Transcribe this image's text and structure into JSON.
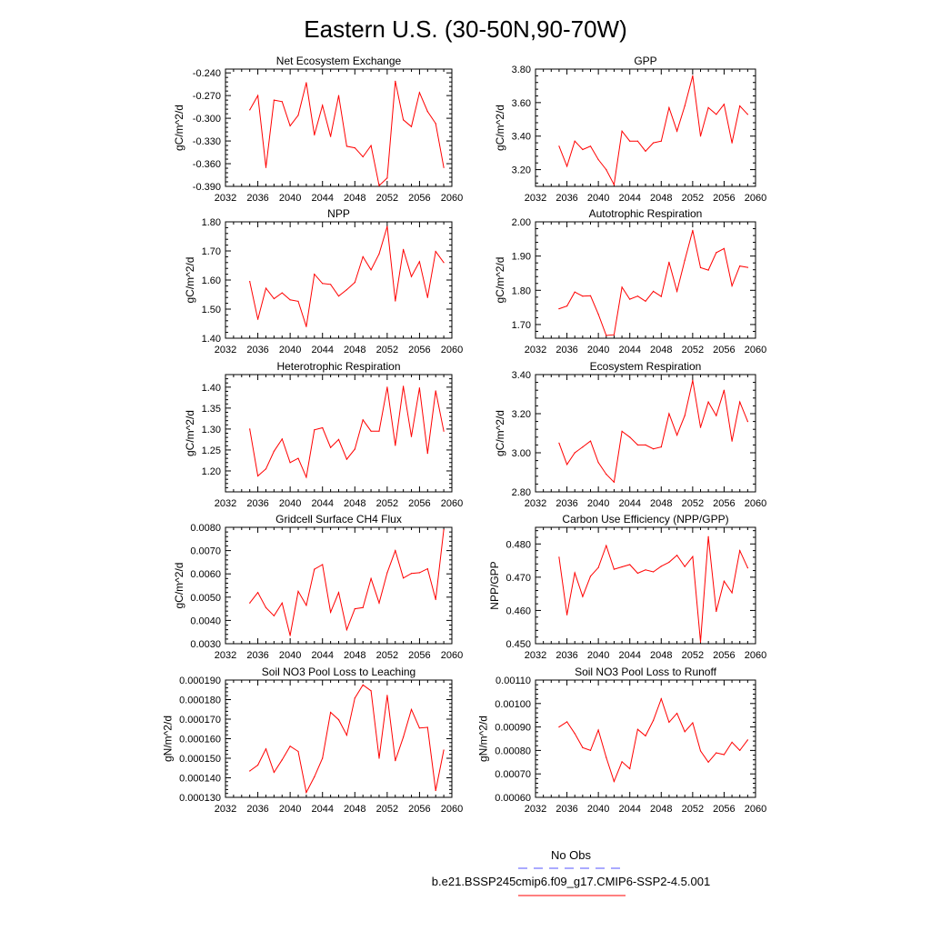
{
  "page": {
    "title": "Eastern U.S. (30-50N,90-70W)",
    "legend": [
      {
        "label": "No Obs",
        "color": "#5555ff",
        "dash": true
      },
      {
        "label": "b.e21.BSSP245cmip6.f09_g17.CMIP6-SSP2-4.5.001",
        "color": "#ff0000",
        "dash": false
      }
    ]
  },
  "chart_data": [
    {
      "type": "line",
      "title": "Net Ecosystem Exchange",
      "ylabel": "gC/m^2/d",
      "xlim": [
        2032,
        2060
      ],
      "ylim": [
        -0.39,
        -0.235
      ],
      "yticks": [
        "-0.240",
        "-0.270",
        "-0.300",
        "-0.330",
        "-0.360",
        "-0.390"
      ],
      "xticks": [
        "2032",
        "2036",
        "2040",
        "2044",
        "2048",
        "2052",
        "2056",
        "2060"
      ],
      "series": [
        {
          "color": "#ff0000",
          "x": [
            2035,
            2036,
            2037,
            2038,
            2039,
            2040,
            2041,
            2042,
            2043,
            2044,
            2045,
            2046,
            2047,
            2048,
            2049,
            2050,
            2051,
            2052,
            2053,
            2054,
            2055,
            2056,
            2057,
            2058,
            2059
          ],
          "y": [
            -0.289,
            -0.27,
            -0.365,
            -0.276,
            -0.278,
            -0.31,
            -0.296,
            -0.253,
            -0.322,
            -0.283,
            -0.324,
            -0.27,
            -0.337,
            -0.339,
            -0.351,
            -0.336,
            -0.389,
            -0.379,
            -0.251,
            -0.302,
            -0.311,
            -0.266,
            -0.291,
            -0.307,
            -0.365
          ]
        }
      ]
    },
    {
      "type": "line",
      "title": "GPP",
      "ylabel": "gC/m^2/d",
      "xlim": [
        2032,
        2060
      ],
      "ylim": [
        3.1,
        3.8
      ],
      "yticks": [
        "3.80",
        "3.60",
        "3.40",
        "3.20"
      ],
      "xticks": [
        "2032",
        "2036",
        "2040",
        "2044",
        "2048",
        "2052",
        "2056",
        "2060"
      ],
      "series": [
        {
          "color": "#ff0000",
          "x": [
            2035,
            2036,
            2037,
            2038,
            2039,
            2040,
            2041,
            2042,
            2043,
            2044,
            2045,
            2046,
            2047,
            2048,
            2049,
            2050,
            2051,
            2052,
            2053,
            2054,
            2055,
            2056,
            2057,
            2058,
            2059
          ],
          "y": [
            3.34,
            3.22,
            3.37,
            3.32,
            3.34,
            3.26,
            3.2,
            3.11,
            3.43,
            3.37,
            3.37,
            3.31,
            3.36,
            3.37,
            3.57,
            3.43,
            3.58,
            3.76,
            3.4,
            3.57,
            3.53,
            3.59,
            3.36,
            3.58,
            3.53
          ]
        }
      ]
    },
    {
      "type": "line",
      "title": "NPP",
      "ylabel": "gC/m^2/d",
      "xlim": [
        2032,
        2060
      ],
      "ylim": [
        1.4,
        1.8
      ],
      "yticks": [
        "1.80",
        "1.70",
        "1.60",
        "1.50",
        "1.40"
      ],
      "xticks": [
        "2032",
        "2036",
        "2040",
        "2044",
        "2048",
        "2052",
        "2056",
        "2060"
      ],
      "series": [
        {
          "color": "#ff0000",
          "x": [
            2035,
            2036,
            2037,
            2038,
            2039,
            2040,
            2041,
            2042,
            2043,
            2044,
            2045,
            2046,
            2047,
            2048,
            2049,
            2050,
            2051,
            2052,
            2053,
            2054,
            2055,
            2056,
            2057,
            2058,
            2059
          ],
          "y": [
            1.595,
            1.465,
            1.572,
            1.536,
            1.556,
            1.532,
            1.527,
            1.44,
            1.62,
            1.588,
            1.585,
            1.545,
            1.567,
            1.592,
            1.68,
            1.635,
            1.69,
            1.784,
            1.528,
            1.705,
            1.612,
            1.663,
            1.54,
            1.698,
            1.66
          ]
        }
      ]
    },
    {
      "type": "line",
      "title": "Autotrophic Respiration",
      "ylabel": "gC/m^2/d",
      "xlim": [
        2032,
        2060
      ],
      "ylim": [
        1.66,
        2.0
      ],
      "yticks": [
        "2.00",
        "1.90",
        "1.80",
        "1.70"
      ],
      "xticks": [
        "2032",
        "2036",
        "2040",
        "2044",
        "2048",
        "2052",
        "2056",
        "2060"
      ],
      "series": [
        {
          "color": "#ff0000",
          "x": [
            2035,
            2036,
            2037,
            2038,
            2039,
            2040,
            2041,
            2042,
            2043,
            2044,
            2045,
            2046,
            2047,
            2048,
            2049,
            2050,
            2051,
            2052,
            2053,
            2054,
            2055,
            2056,
            2057,
            2058,
            2059
          ],
          "y": [
            1.746,
            1.754,
            1.795,
            1.783,
            1.784,
            1.73,
            1.668,
            1.67,
            1.809,
            1.774,
            1.783,
            1.768,
            1.797,
            1.782,
            1.882,
            1.797,
            1.888,
            1.975,
            1.866,
            1.859,
            1.91,
            1.922,
            1.813,
            1.871,
            1.867
          ]
        }
      ]
    },
    {
      "type": "line",
      "title": "Heterotrophic Respiration",
      "ylabel": "gC/m^2/d",
      "xlim": [
        2032,
        2060
      ],
      "ylim": [
        1.15,
        1.43
      ],
      "yticks": [
        "1.40",
        "1.35",
        "1.30",
        "1.25",
        "1.20"
      ],
      "xticks": [
        "2032",
        "2036",
        "2040",
        "2044",
        "2048",
        "2052",
        "2056",
        "2060"
      ],
      "series": [
        {
          "color": "#ff0000",
          "x": [
            2035,
            2036,
            2037,
            2038,
            2039,
            2040,
            2041,
            2042,
            2043,
            2044,
            2045,
            2046,
            2047,
            2048,
            2049,
            2050,
            2051,
            2052,
            2053,
            2054,
            2055,
            2056,
            2057,
            2058,
            2059
          ],
          "y": [
            1.3,
            1.188,
            1.205,
            1.247,
            1.276,
            1.22,
            1.23,
            1.185,
            1.298,
            1.303,
            1.256,
            1.275,
            1.228,
            1.252,
            1.322,
            1.295,
            1.295,
            1.4,
            1.261,
            1.402,
            1.282,
            1.398,
            1.242,
            1.391,
            1.295
          ]
        }
      ]
    },
    {
      "type": "line",
      "title": "Ecosystem Respiration",
      "ylabel": "gC/m^2/d",
      "xlim": [
        2032,
        2060
      ],
      "ylim": [
        2.8,
        3.4
      ],
      "yticks": [
        "3.40",
        "3.20",
        "3.00",
        "2.80"
      ],
      "xticks": [
        "2032",
        "2036",
        "2040",
        "2044",
        "2048",
        "2052",
        "2056",
        "2060"
      ],
      "series": [
        {
          "color": "#ff0000",
          "x": [
            2035,
            2036,
            2037,
            2038,
            2039,
            2040,
            2041,
            2042,
            2043,
            2044,
            2045,
            2046,
            2047,
            2048,
            2049,
            2050,
            2051,
            2052,
            2053,
            2054,
            2055,
            2056,
            2057,
            2058,
            2059
          ],
          "y": [
            3.05,
            2.94,
            3.0,
            3.03,
            3.06,
            2.95,
            2.89,
            2.85,
            3.11,
            3.08,
            3.04,
            3.04,
            3.02,
            3.03,
            3.2,
            3.09,
            3.19,
            3.37,
            3.13,
            3.26,
            3.19,
            3.32,
            3.06,
            3.26,
            3.16
          ]
        }
      ]
    },
    {
      "type": "line",
      "title": "Gridcell Surface CH4 Flux",
      "ylabel": "gC/m^2/d",
      "xlim": [
        2032,
        2060
      ],
      "ylim": [
        0.003,
        0.008
      ],
      "yticks": [
        "0.0080",
        "0.0070",
        "0.0060",
        "0.0050",
        "0.0040",
        "0.0030"
      ],
      "xticks": [
        "2032",
        "2036",
        "2040",
        "2044",
        "2048",
        "2052",
        "2056",
        "2060"
      ],
      "series": [
        {
          "color": "#ff0000",
          "x": [
            2035,
            2036,
            2037,
            2038,
            2039,
            2040,
            2041,
            2042,
            2043,
            2044,
            2045,
            2046,
            2047,
            2048,
            2049,
            2050,
            2051,
            2052,
            2053,
            2054,
            2055,
            2056,
            2057,
            2058,
            2059
          ],
          "y": [
            0.00475,
            0.0052,
            0.00455,
            0.0042,
            0.00475,
            0.00335,
            0.00525,
            0.00465,
            0.0062,
            0.0064,
            0.00435,
            0.0052,
            0.0036,
            0.0045,
            0.00455,
            0.0058,
            0.00475,
            0.00605,
            0.007,
            0.00582,
            0.00602,
            0.00605,
            0.00622,
            0.0049,
            0.0079
          ]
        }
      ]
    },
    {
      "type": "line",
      "title": "Carbon Use Efficiency (NPP/GPP)",
      "ylabel": "NPP/GPP",
      "xlim": [
        2032,
        2060
      ],
      "ylim": [
        0.45,
        0.485
      ],
      "yticks": [
        "0.480",
        "0.470",
        "0.460",
        "0.450"
      ],
      "xticks": [
        "2032",
        "2036",
        "2040",
        "2044",
        "2048",
        "2052",
        "2056",
        "2060"
      ],
      "series": [
        {
          "color": "#ff0000",
          "x": [
            2035,
            2036,
            2037,
            2038,
            2039,
            2040,
            2041,
            2042,
            2043,
            2044,
            2045,
            2046,
            2047,
            2048,
            2049,
            2050,
            2051,
            2052,
            2053,
            2054,
            2055,
            2056,
            2057,
            2058,
            2059
          ],
          "y": [
            0.476,
            0.4587,
            0.4713,
            0.4642,
            0.4703,
            0.4729,
            0.4795,
            0.4724,
            0.4731,
            0.4738,
            0.4712,
            0.4722,
            0.4716,
            0.4733,
            0.4745,
            0.4766,
            0.4732,
            0.4762,
            0.4505,
            0.4822,
            0.4597,
            0.4688,
            0.4653,
            0.478,
            0.4728
          ]
        }
      ]
    },
    {
      "type": "line",
      "title": "Soil NO3 Pool Loss to Leaching",
      "ylabel": "gN/m^2/d",
      "xlim": [
        2032,
        2060
      ],
      "ylim": [
        0.00013,
        0.00019
      ],
      "yticks": [
        "0.000190",
        "0.000180",
        "0.000170",
        "0.000160",
        "0.000150",
        "0.000140",
        "0.000130"
      ],
      "xticks": [
        "2032",
        "2036",
        "2040",
        "2044",
        "2048",
        "2052",
        "2056",
        "2060"
      ],
      "series": [
        {
          "color": "#ff0000",
          "x": [
            2035,
            2036,
            2037,
            2038,
            2039,
            2040,
            2041,
            2042,
            2043,
            2044,
            2045,
            2046,
            2047,
            2048,
            2049,
            2050,
            2051,
            2052,
            2053,
            2054,
            2055,
            2056,
            2057,
            2058,
            2059
          ],
          "y": [
            0.0001435,
            0.0001465,
            0.0001548,
            0.0001428,
            0.0001492,
            0.0001562,
            0.0001535,
            0.0001325,
            0.0001405,
            0.00015,
            0.0001735,
            0.0001697,
            0.0001618,
            0.0001808,
            0.0001875,
            0.0001845,
            0.00015,
            0.0001822,
            0.0001488,
            0.0001608,
            0.000175,
            0.0001655,
            0.0001658,
            0.0001335,
            0.0001542
          ]
        }
      ]
    },
    {
      "type": "line",
      "title": "Soil NO3 Pool Loss to Runoff",
      "ylabel": "gN/m^2/d",
      "xlim": [
        2032,
        2060
      ],
      "ylim": [
        0.0006,
        0.0011
      ],
      "yticks": [
        "0.00110",
        "0.00100",
        "0.00090",
        "0.00080",
        "0.00070",
        "0.00060"
      ],
      "xticks": [
        "2032",
        "2036",
        "2040",
        "2044",
        "2048",
        "2052",
        "2056",
        "2060"
      ],
      "series": [
        {
          "color": "#ff0000",
          "x": [
            2035,
            2036,
            2037,
            2038,
            2039,
            2040,
            2041,
            2042,
            2043,
            2044,
            2045,
            2046,
            2047,
            2048,
            2049,
            2050,
            2051,
            2052,
            2053,
            2054,
            2055,
            2056,
            2057,
            2058,
            2059
          ],
          "y": [
            0.0009,
            0.000922,
            0.000872,
            0.000812,
            0.0008,
            0.000887,
            0.00077,
            0.000668,
            0.000752,
            0.000722,
            0.00089,
            0.000862,
            0.000928,
            0.00102,
            0.00092,
            0.000958,
            0.00088,
            0.000918,
            0.000798,
            0.00075,
            0.00079,
            0.000782,
            0.000835,
            0.0008,
            0.000845
          ]
        }
      ]
    }
  ]
}
